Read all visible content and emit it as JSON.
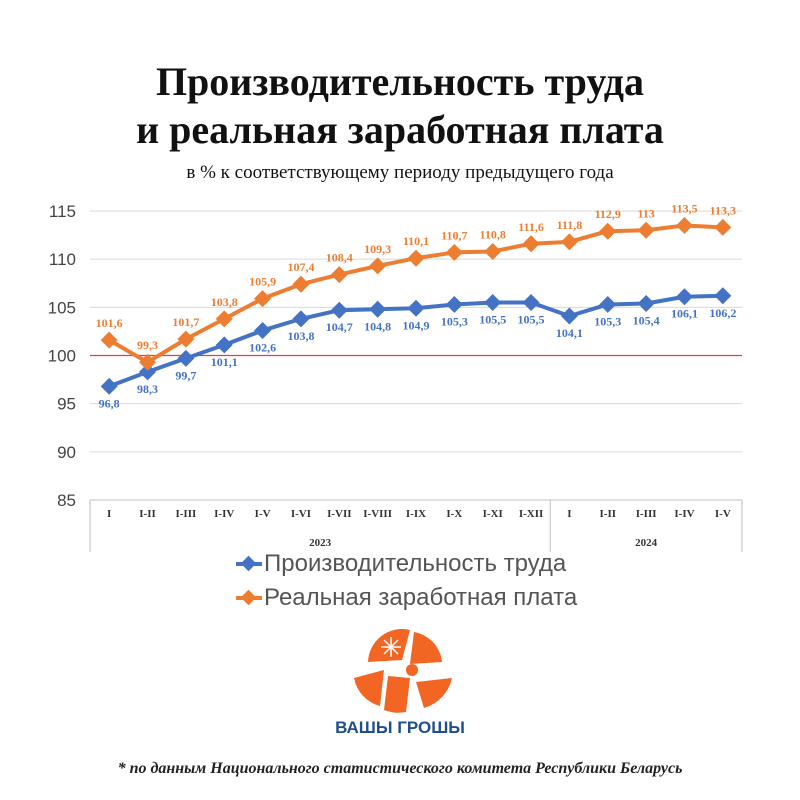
{
  "title_line1": "Производительность труда",
  "title_line2": "и реальная заработная плата",
  "subtitle": "в % к соответствующему периоду предыдущего года",
  "colors": {
    "productivity": "#4472c4",
    "wages": "#ed7d31",
    "reference_line": "#e04040",
    "grid": "#d9d9d9",
    "logo": "#f26522",
    "logo_text": "#1f4e8c"
  },
  "chart_data": {
    "type": "line",
    "categories": [
      "I",
      "I-II",
      "I-III",
      "I-IV",
      "I-V",
      "I-VI",
      "I-VII",
      "I-VIII",
      "I-IX",
      "I-X",
      "I-XI",
      "I-XII",
      "I",
      "I-II",
      "I-III",
      "I-IV",
      "I-V"
    ],
    "year_groups": [
      {
        "label": "2023",
        "start": 0,
        "end": 11
      },
      {
        "label": "2024",
        "start": 12,
        "end": 16
      }
    ],
    "series": [
      {
        "name": "Производительность труда",
        "values": [
          96.8,
          98.3,
          99.7,
          101.1,
          102.6,
          103.8,
          104.7,
          104.8,
          104.9,
          105.3,
          105.5,
          105.5,
          104.1,
          105.3,
          105.4,
          106.1,
          106.2
        ],
        "labels": [
          "96,8",
          "98,3",
          "99,7",
          "101,1",
          "102,6",
          "103,8",
          "104,7",
          "104,8",
          "104,9",
          "105,3",
          "105,5",
          "105,5",
          "104,1",
          "105,3",
          "105,4",
          "106,1",
          "106,2"
        ]
      },
      {
        "name": "Реальная заработная плата",
        "values": [
          101.6,
          99.3,
          101.7,
          103.8,
          105.9,
          107.4,
          108.4,
          109.3,
          110.1,
          110.7,
          110.8,
          111.6,
          111.8,
          112.9,
          113.0,
          113.5,
          113.3
        ],
        "labels": [
          "101,6",
          "99,3",
          "101,7",
          "103,8",
          "105,9",
          "107,4",
          "108,4",
          "109,3",
          "110,1",
          "110,7",
          "110,8",
          "111,6",
          "111,8",
          "112,9",
          "113",
          "113,5",
          "113,3"
        ]
      }
    ],
    "y_ticks": [
      "85",
      "90",
      "95",
      "100",
      "105",
      "110",
      "115"
    ],
    "ylim": [
      85,
      115
    ],
    "reference_value": 100,
    "grid": true,
    "legend_position": "bottom"
  },
  "legend": {
    "productivity": "Производительность труда",
    "wages": "Реальная заработная плата"
  },
  "logo_text": "ВАШЫ ГРОШЫ",
  "source_note": "* по данным Национального статистического комитета Республики Беларусь"
}
